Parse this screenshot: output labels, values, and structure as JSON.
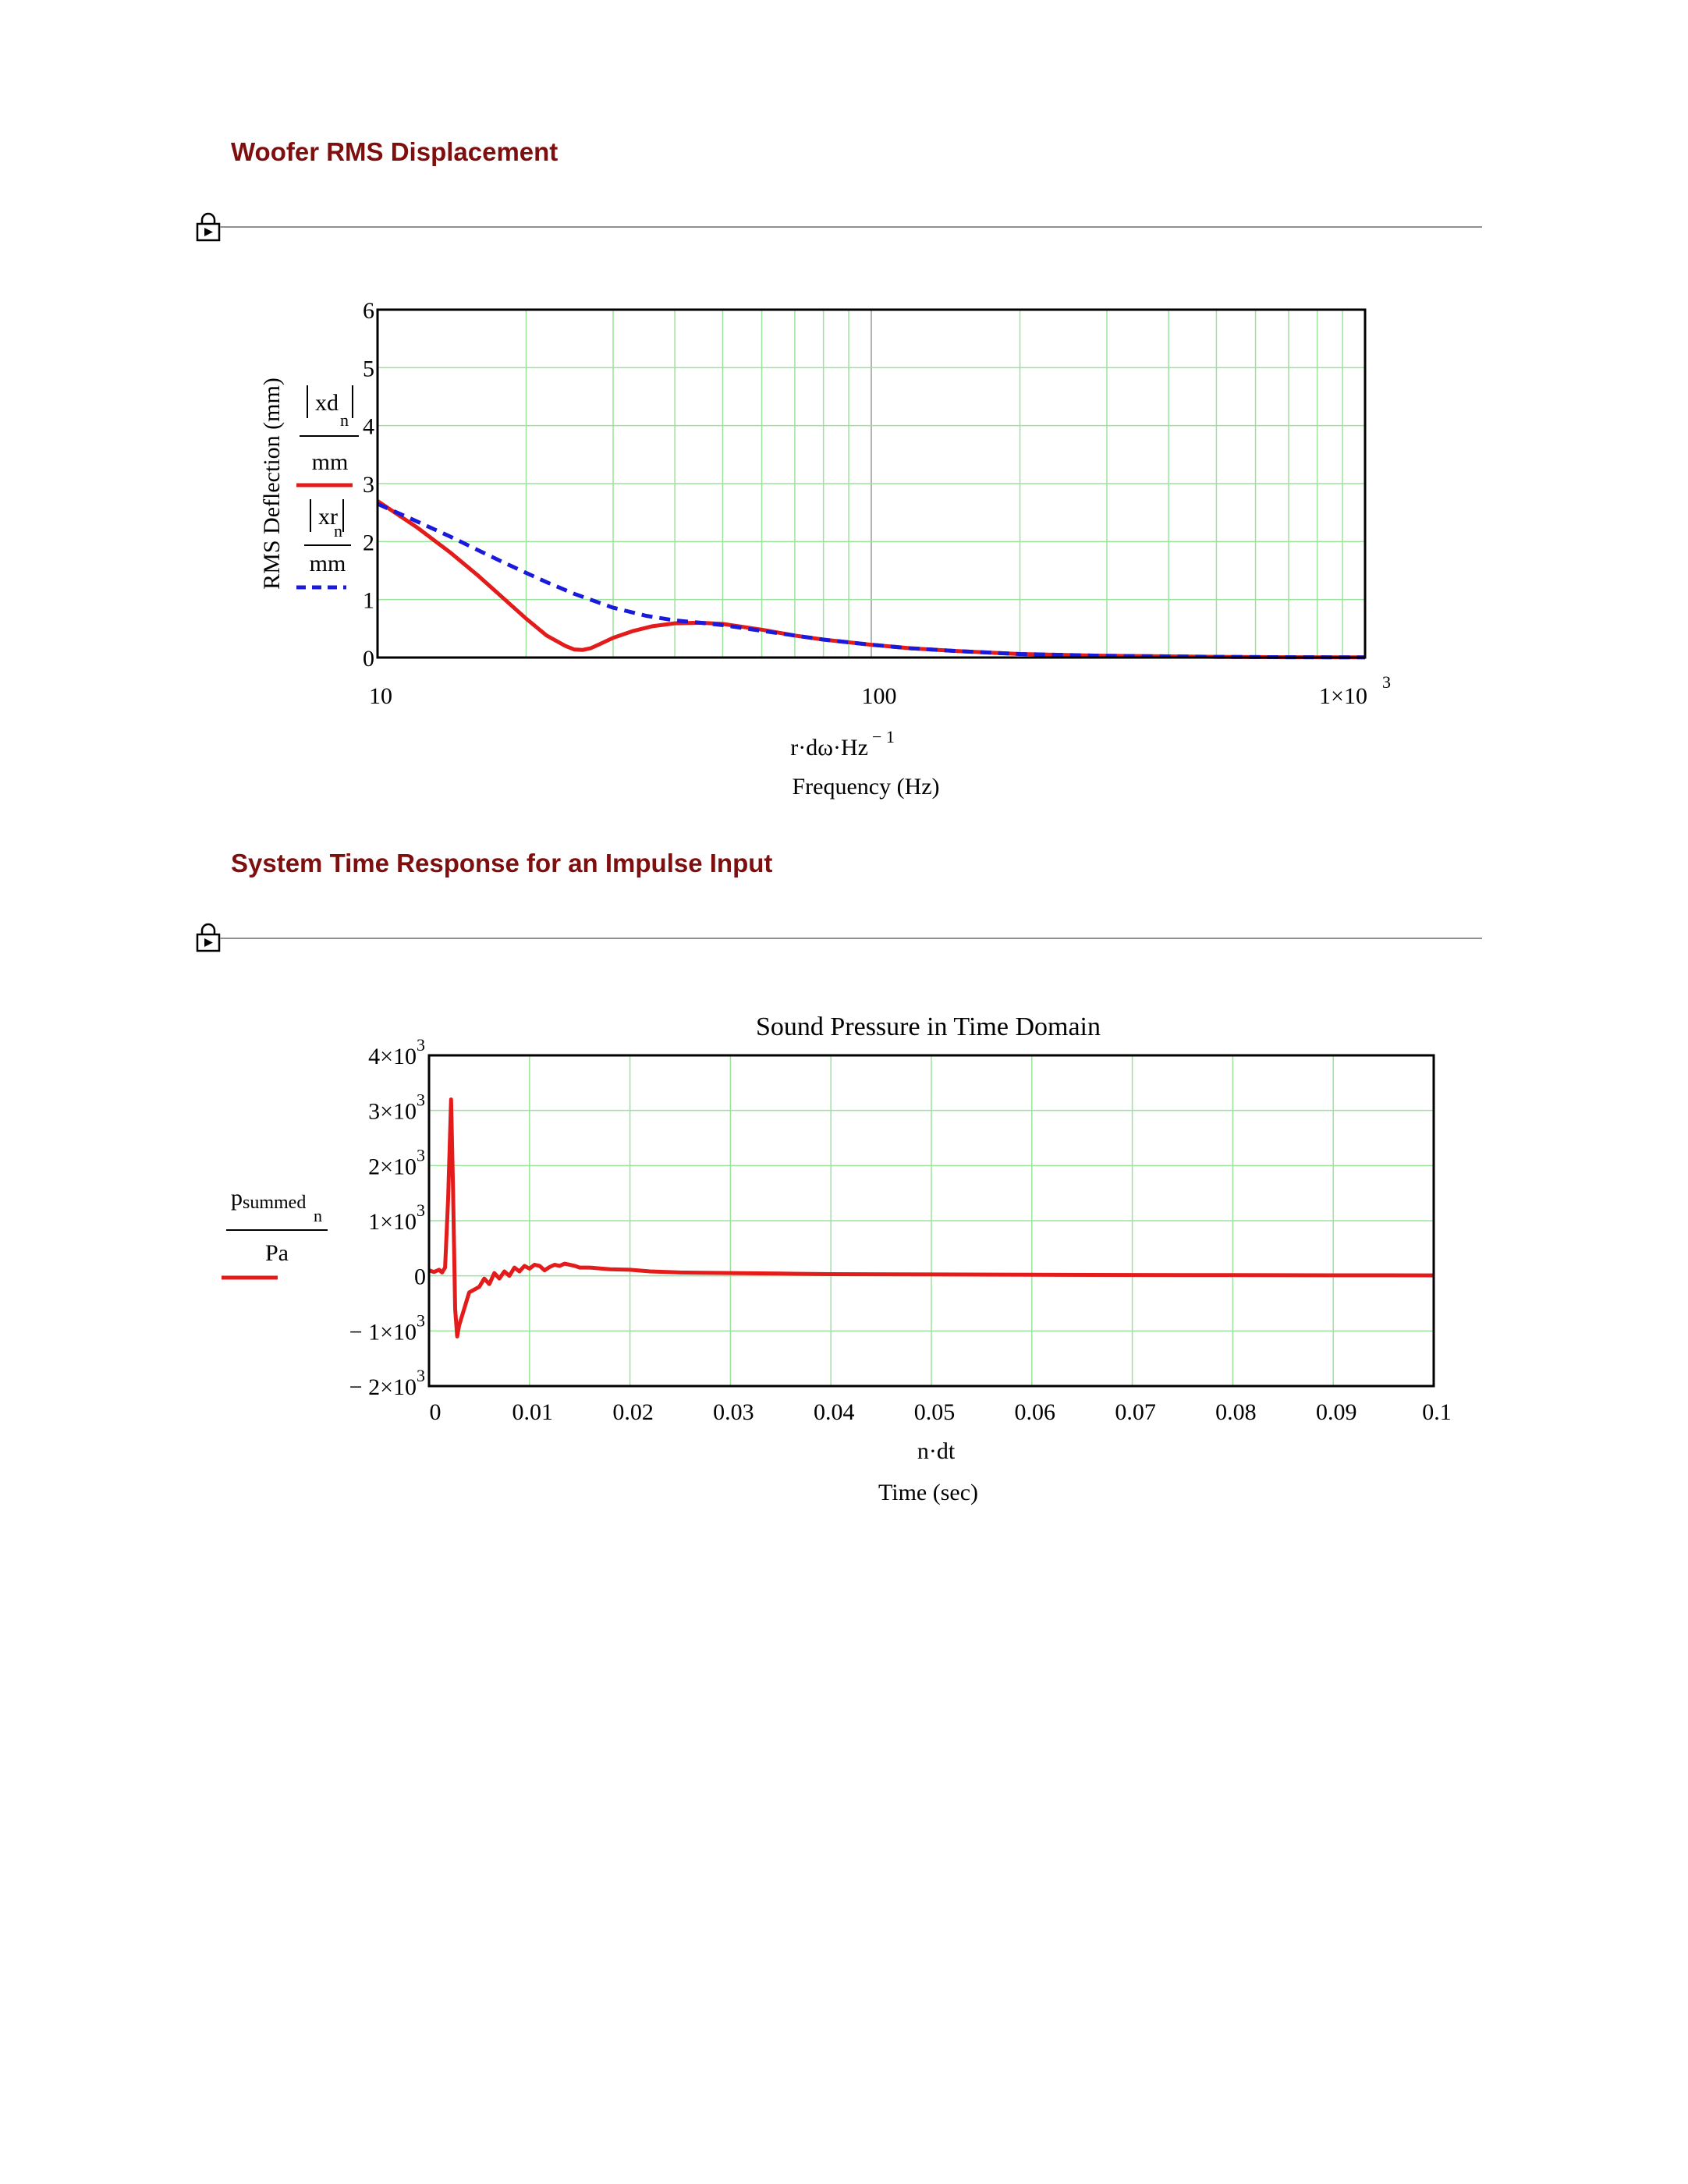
{
  "section1": {
    "title": "Woofer RMS Displacement"
  },
  "section2": {
    "title": "System Time Response for an Impulse Input"
  },
  "icons": {
    "region_lock": "lock-icon"
  },
  "chart_data": [
    {
      "type": "line",
      "title": "",
      "xscale": "log",
      "xlim": [
        10,
        1000
      ],
      "ylim": [
        0,
        6
      ],
      "grid": true,
      "x_ticks": [
        "10",
        "100",
        "1×10"
      ],
      "x_ticks_exp": [
        "",
        "",
        "3"
      ],
      "y_ticks": [
        "0",
        "1",
        "2",
        "3",
        "4",
        "5",
        "6"
      ],
      "xlabel_expr": "r·dω·Hz",
      "xlabel_expr_exp": "− 1",
      "xlabel": "Frequency (Hz)",
      "ylabel": "RMS Deflection (mm)",
      "series": [
        {
          "name": "xd",
          "name_sub": "n",
          "unit": "mm",
          "color": "#e31b1b",
          "style": "solid",
          "x": [
            10,
            12,
            14,
            16,
            18,
            20,
            22,
            24,
            25,
            26,
            27,
            28,
            30,
            33,
            36,
            40,
            45,
            50,
            60,
            70,
            80,
            100,
            120,
            150,
            200,
            300,
            500,
            700,
            1000
          ],
          "y": [
            2.7,
            2.25,
            1.82,
            1.41,
            1.02,
            0.67,
            0.38,
            0.2,
            0.14,
            0.13,
            0.16,
            0.22,
            0.34,
            0.46,
            0.54,
            0.59,
            0.6,
            0.58,
            0.48,
            0.38,
            0.31,
            0.22,
            0.16,
            0.11,
            0.06,
            0.03,
            0.012,
            0.006,
            0.003
          ]
        },
        {
          "name": "xr",
          "name_sub": "n",
          "unit": "mm",
          "color": "#1a1adb",
          "style": "dashed",
          "x": [
            10,
            12,
            14,
            16,
            18,
            20,
            22,
            25,
            30,
            35,
            40,
            45,
            50,
            60,
            70,
            80,
            100,
            120,
            150,
            200,
            300,
            500,
            700,
            1000
          ],
          "y": [
            2.65,
            2.35,
            2.09,
            1.85,
            1.64,
            1.46,
            1.3,
            1.1,
            0.86,
            0.72,
            0.64,
            0.6,
            0.56,
            0.46,
            0.38,
            0.31,
            0.22,
            0.16,
            0.11,
            0.06,
            0.03,
            0.012,
            0.006,
            0.003
          ]
        }
      ]
    },
    {
      "type": "line",
      "title": "Sound Pressure in Time Domain",
      "xlim": [
        0,
        0.1
      ],
      "ylim": [
        -2000,
        4000
      ],
      "grid": true,
      "x_ticks": [
        "0",
        "0.01",
        "0.02",
        "0.03",
        "0.04",
        "0.05",
        "0.06",
        "0.07",
        "0.08",
        "0.09",
        "0.1"
      ],
      "y_ticks": [
        "− 2×10",
        "− 1×10",
        "0",
        "1×10",
        "2×10",
        "3×10",
        "4×10"
      ],
      "y_ticks_exp": [
        "3",
        "3",
        "",
        "3",
        "3",
        "3",
        "3"
      ],
      "xlabel_expr": "n·dt",
      "xlabel": "Time (sec)",
      "series": [
        {
          "name": "p",
          "name_sub": "summed",
          "name_sub2": "n",
          "unit": "Pa",
          "color": "#e31b1b",
          "style": "solid",
          "x": [
            0,
            0.0005,
            0.001,
            0.0013,
            0.0016,
            0.0019,
            0.0022,
            0.0024,
            0.0026,
            0.0028,
            0.003,
            0.004,
            0.005,
            0.0055,
            0.006,
            0.0065,
            0.007,
            0.0075,
            0.008,
            0.0085,
            0.009,
            0.0095,
            0.01,
            0.0105,
            0.011,
            0.0115,
            0.012,
            0.0125,
            0.013,
            0.0135,
            0.014,
            0.0145,
            0.015,
            0.016,
            0.018,
            0.02,
            0.022,
            0.025,
            0.03,
            0.035,
            0.04,
            0.05,
            0.06,
            0.07,
            0.08,
            0.09,
            0.1
          ],
          "y": [
            100,
            70,
            110,
            60,
            150,
            1400,
            3200,
            1500,
            -600,
            -1100,
            -900,
            -300,
            -200,
            -50,
            -150,
            50,
            -50,
            80,
            0,
            150,
            80,
            180,
            130,
            200,
            180,
            100,
            160,
            200,
            180,
            220,
            200,
            180,
            150,
            150,
            120,
            110,
            80,
            60,
            50,
            40,
            30,
            25,
            20,
            15,
            12,
            10,
            8
          ]
        }
      ]
    }
  ]
}
